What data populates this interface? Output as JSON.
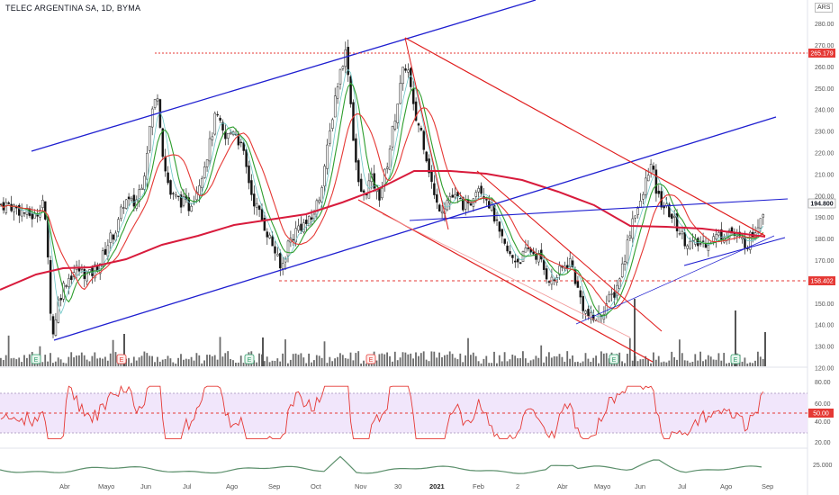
{
  "header": {
    "title": "TELEC ARGENTINA SA, 1D, BYMA",
    "currency": "ARS"
  },
  "colors": {
    "up": "#4a4a4a",
    "down": "#111111",
    "channel_blue": "#1f1fd0",
    "channel_red": "#e01e1e",
    "sma_long": "#d81b3c",
    "sma_mid": "#e53935",
    "sma_short": "#2e9e2e",
    "sma_fast": "#6fc7c7",
    "rsi_line": "#e53935",
    "rsi_band": "#f1e6fb",
    "lower_line": "#5b8f6b",
    "price_tag": "#e53935"
  },
  "price_axis": {
    "ticks": [
      "280.00",
      "270.00",
      "260.00",
      "250.00",
      "240.00",
      "230.00",
      "220.00",
      "210.00",
      "200.00",
      "190.00",
      "180.00",
      "170.00",
      "160.00",
      "150.00",
      "140.00",
      "130.00",
      "120.00"
    ],
    "labels": {
      "last": "194.800",
      "high_line": "265.179",
      "low_line": "158.402"
    }
  },
  "rsi_axis": {
    "ticks": [
      "80.00",
      "60.00",
      "40.00",
      "20.00"
    ],
    "mid": "50.00"
  },
  "lower_axis": {
    "ticks": [
      "25.000"
    ]
  },
  "time_axis": {
    "labels": [
      "Abr",
      "Mayo",
      "Jun",
      "Jul",
      "Ago",
      "Sep",
      "Oct",
      "Nov",
      "30",
      "2021",
      "Feb",
      "2",
      "Abr",
      "Mayo",
      "Jun",
      "Jul",
      "Ago",
      "Sep"
    ]
  },
  "chart_data": {
    "type": "candlestick",
    "symbol": "TELEC ARGENTINA SA",
    "interval": "1D",
    "exchange": "BYMA",
    "last_price": 194.8,
    "horizontal_levels": [
      265.179,
      158.402
    ],
    "ylim": [
      120,
      285
    ],
    "rsi": {
      "levels": [
        70,
        50,
        30
      ],
      "ylim": [
        20,
        90
      ]
    },
    "approx_closes": [
      {
        "x": "Mar-2020",
        "y": 192
      },
      {
        "x": "Mar-2020 (mid)",
        "y": 200
      },
      {
        "x": "Mar-2020 (low)",
        "y": 133
      },
      {
        "x": "Abr",
        "y": 160
      },
      {
        "x": "Mayo",
        "y": 165
      },
      {
        "x": "late Mayo",
        "y": 190
      },
      {
        "x": "Jun",
        "y": 240
      },
      {
        "x": "Jul",
        "y": 198
      },
      {
        "x": "Ago",
        "y": 230
      },
      {
        "x": "Sep",
        "y": 165
      },
      {
        "x": "Oct",
        "y": 200
      },
      {
        "x": "late Oct",
        "y": 268
      },
      {
        "x": "Nov",
        "y": 198
      },
      {
        "x": "30",
        "y": 255
      },
      {
        "x": "2021",
        "y": 190
      },
      {
        "x": "Feb",
        "y": 200
      },
      {
        "x": "2",
        "y": 170
      },
      {
        "x": "Abr",
        "y": 160
      },
      {
        "x": "Mayo",
        "y": 142
      },
      {
        "x": "late Mayo",
        "y": 190
      },
      {
        "x": "Jun",
        "y": 213
      },
      {
        "x": "Jul",
        "y": 183
      },
      {
        "x": "Ago",
        "y": 180
      },
      {
        "x": "Sep",
        "y": 194.8
      }
    ]
  }
}
